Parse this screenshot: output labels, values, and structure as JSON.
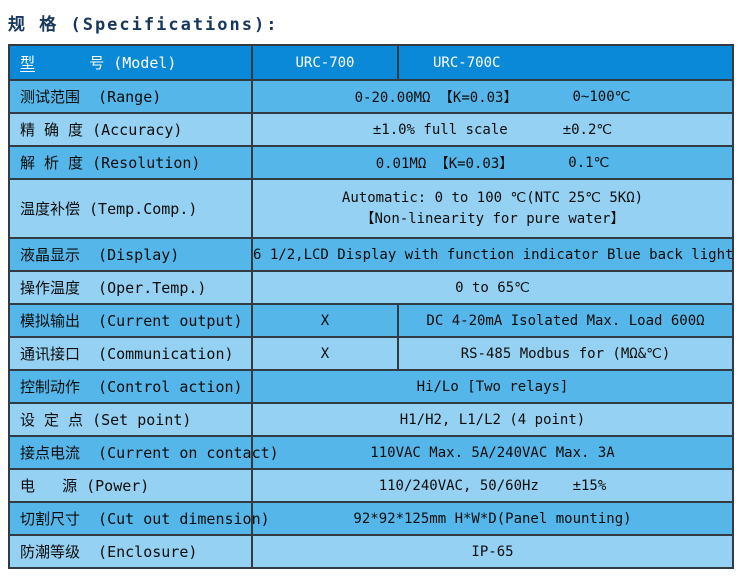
{
  "page": {
    "title": "规 格 (Specifications):"
  },
  "colors": {
    "header_bg": "#0989d8",
    "row_medium": "#55b6e9",
    "row_light": "#94d1f2",
    "border": "#333b42",
    "title_text": "#17375d",
    "header_text": "#ffffff"
  },
  "table": {
    "header": {
      "label_cn": "型",
      "label_rest": "      号 (Model)",
      "model_a": "URC-700",
      "model_b": "URC-700C"
    },
    "rows": [
      {
        "label": "测试范围  (Range)",
        "seg1": "0-20.00MΩ 【K=0.03】",
        "seg2": "0~100℃"
      },
      {
        "label": "精 确 度 (Accuracy)",
        "seg1": "±1.0% full scale",
        "seg2": "±0.2℃"
      },
      {
        "label": "解 析 度 (Resolution)",
        "seg1": "0.01MΩ 【K=0.03】",
        "seg2": "0.1℃"
      },
      {
        "label": "温度补偿 (Temp.Comp.)",
        "line1": "Automatic: 0 to 100 ℃(NTC 25℃ 5KΩ)",
        "line2": "【Non-linearity for pure water】"
      },
      {
        "label": "液晶显示  (Display)",
        "value": "6 1/2,LCD Display with function indicator Blue back light"
      },
      {
        "label": "操作温度  (Oper.Temp.)",
        "value": "0 to 65℃"
      },
      {
        "label": "模拟输出  (Current output)",
        "cell_a": "X",
        "cell_b": "DC 4-20mA Isolated Max. Load 600Ω"
      },
      {
        "label": "通讯接口  (Communication)",
        "cell_a": "X",
        "cell_b": "RS-485 Modbus for (MΩ&℃)"
      },
      {
        "label": "控制动作  (Control action)",
        "value": "Hi/Lo [Two relays]"
      },
      {
        "label": "设 定 点 (Set point)",
        "value": "H1/H2, L1/L2 (4 point)"
      },
      {
        "label": "接点电流  (Current on contact)",
        "value": "110VAC Max. 5A/240VAC Max. 3A"
      },
      {
        "label": "电   源 (Power)",
        "value": "110/240VAC, 50/60Hz    ±15%"
      },
      {
        "label": "切割尺寸  (Cut out dimension)",
        "value": "92*92*125mm H*W*D(Panel mounting)"
      },
      {
        "label": "防潮等级  (Enclosure)",
        "value": "IP-65"
      }
    ]
  }
}
